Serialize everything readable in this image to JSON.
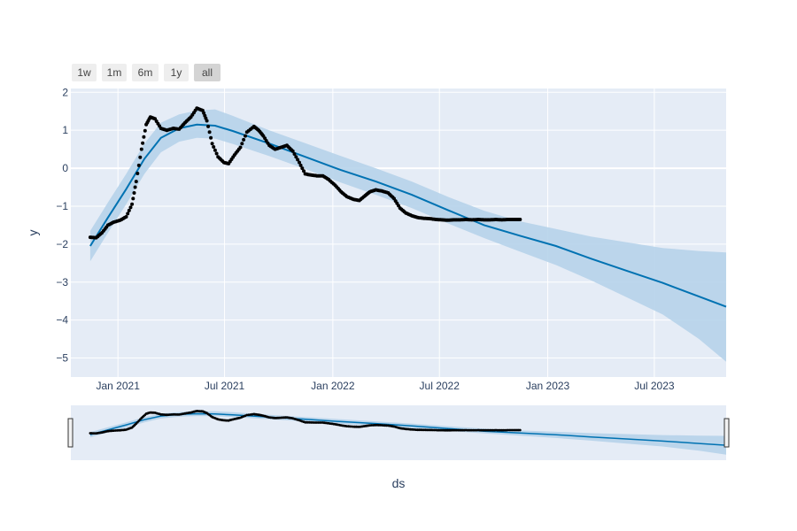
{
  "range_selector": {
    "buttons": [
      {
        "label": "1w",
        "active": false
      },
      {
        "label": "1m",
        "active": false
      },
      {
        "label": "6m",
        "active": false
      },
      {
        "label": "1y",
        "active": false
      },
      {
        "label": "all",
        "active": true
      }
    ]
  },
  "colors": {
    "plot_bg": "#e5ecf6",
    "grid": "#ffffff",
    "forecast_line": "#0072b2",
    "uncertainty_band": "#b6d3ea",
    "observed_points": "#000000",
    "text": "#2a3f5f"
  },
  "chart_data": {
    "type": "line",
    "xlabel": "ds",
    "ylabel": "y",
    "xlim": [
      "2020-10-13",
      "2023-10-31"
    ],
    "ylim": [
      -5.5,
      2.1
    ],
    "x_ticks": [
      {
        "date": "2021-01-01",
        "label": "Jan 2021"
      },
      {
        "date": "2021-07-01",
        "label": "Jul 2021"
      },
      {
        "date": "2022-01-01",
        "label": "Jan 2022"
      },
      {
        "date": "2022-07-01",
        "label": "Jul 2022"
      },
      {
        "date": "2023-01-01",
        "label": "Jan 2023"
      },
      {
        "date": "2023-07-01",
        "label": "Jul 2023"
      }
    ],
    "y_ticks": [
      {
        "value": 2,
        "label": "2"
      },
      {
        "value": 1,
        "label": "1"
      },
      {
        "value": 0,
        "label": "0"
      },
      {
        "value": -1,
        "label": "−1"
      },
      {
        "value": -2,
        "label": "−2"
      },
      {
        "value": -3,
        "label": "−3"
      },
      {
        "value": -4,
        "label": "−4"
      },
      {
        "value": -5,
        "label": "−5"
      }
    ],
    "grid": true,
    "range_slider": true,
    "series": [
      {
        "role": "observed",
        "style": "markers",
        "x": [
          "2020-11-15",
          "2020-11-25",
          "2020-12-05",
          "2020-12-15",
          "2020-12-25",
          "2021-01-05",
          "2021-01-15",
          "2021-01-25",
          "2021-02-01",
          "2021-02-10",
          "2021-02-18",
          "2021-02-25",
          "2021-03-05",
          "2021-03-15",
          "2021-03-25",
          "2021-04-05",
          "2021-04-15",
          "2021-04-25",
          "2021-05-05",
          "2021-05-15",
          "2021-05-25",
          "2021-06-01",
          "2021-06-10",
          "2021-06-20",
          "2021-06-30",
          "2021-07-08",
          "2021-07-18",
          "2021-07-28",
          "2021-08-08",
          "2021-08-20",
          "2021-08-28",
          "2021-09-05",
          "2021-09-15",
          "2021-09-25",
          "2021-10-05",
          "2021-10-15",
          "2021-10-25",
          "2021-11-05",
          "2021-11-15",
          "2021-11-25",
          "2021-12-05",
          "2021-12-15",
          "2021-12-25",
          "2022-01-05",
          "2022-01-15",
          "2022-01-25",
          "2022-02-05",
          "2022-02-15",
          "2022-02-25",
          "2022-03-05",
          "2022-03-15",
          "2022-03-25",
          "2022-04-05",
          "2022-04-15",
          "2022-04-25",
          "2022-05-05",
          "2022-05-15",
          "2022-05-25",
          "2022-06-05",
          "2022-06-15",
          "2022-06-25",
          "2022-07-05",
          "2022-07-15",
          "2022-07-25",
          "2022-08-05",
          "2022-08-15",
          "2022-08-25",
          "2022-09-05",
          "2022-09-15",
          "2022-09-25",
          "2022-10-05",
          "2022-10-15",
          "2022-10-25",
          "2022-11-05",
          "2022-11-15"
        ],
        "y": [
          -1.82,
          -1.83,
          -1.7,
          -1.5,
          -1.42,
          -1.37,
          -1.28,
          -0.95,
          -0.35,
          0.5,
          1.15,
          1.35,
          1.3,
          1.05,
          1.0,
          1.05,
          1.03,
          1.2,
          1.35,
          1.58,
          1.52,
          1.25,
          0.65,
          0.3,
          0.15,
          0.12,
          0.35,
          0.55,
          0.95,
          1.1,
          1.0,
          0.85,
          0.6,
          0.5,
          0.55,
          0.6,
          0.45,
          0.15,
          -0.15,
          -0.18,
          -0.2,
          -0.2,
          -0.3,
          -0.45,
          -0.62,
          -0.75,
          -0.82,
          -0.85,
          -0.72,
          -0.62,
          -0.57,
          -0.6,
          -0.65,
          -0.8,
          -1.05,
          -1.18,
          -1.25,
          -1.3,
          -1.32,
          -1.33,
          -1.35,
          -1.36,
          -1.37,
          -1.36,
          -1.36,
          -1.35,
          -1.36,
          -1.35,
          -1.36,
          -1.36,
          -1.35,
          -1.36,
          -1.35,
          -1.35,
          -1.35
        ]
      },
      {
        "role": "forecast",
        "style": "line",
        "x": [
          "2020-11-15",
          "2020-12-15",
          "2021-01-15",
          "2021-02-15",
          "2021-03-15",
          "2021-04-15",
          "2021-05-15",
          "2021-06-15",
          "2021-07-15",
          "2021-09-15",
          "2021-11-15",
          "2022-01-15",
          "2022-03-15",
          "2022-05-15",
          "2022-07-15",
          "2022-09-15",
          "2022-11-15",
          "2023-01-15",
          "2023-03-15",
          "2023-05-15",
          "2023-07-15",
          "2023-09-15",
          "2023-10-31"
        ],
        "y": [
          -2.05,
          -1.3,
          -0.55,
          0.25,
          0.8,
          1.05,
          1.15,
          1.12,
          0.98,
          0.65,
          0.3,
          -0.05,
          -0.35,
          -0.7,
          -1.1,
          -1.5,
          -1.78,
          -2.05,
          -2.38,
          -2.7,
          -3.02,
          -3.38,
          -3.65
        ],
        "lower": [
          -2.45,
          -1.7,
          -0.95,
          -0.15,
          0.42,
          0.7,
          0.8,
          0.78,
          0.64,
          0.32,
          -0.02,
          -0.38,
          -0.7,
          -1.05,
          -1.45,
          -1.84,
          -2.2,
          -2.55,
          -2.95,
          -3.4,
          -3.85,
          -4.5,
          -5.1
        ],
        "upper": [
          -1.65,
          -0.9,
          -0.15,
          0.65,
          1.2,
          1.42,
          1.52,
          1.55,
          1.38,
          1.0,
          0.66,
          0.32,
          0.0,
          -0.35,
          -0.75,
          -1.12,
          -1.4,
          -1.6,
          -1.8,
          -1.95,
          -2.1,
          -2.18,
          -2.22
        ]
      }
    ]
  }
}
